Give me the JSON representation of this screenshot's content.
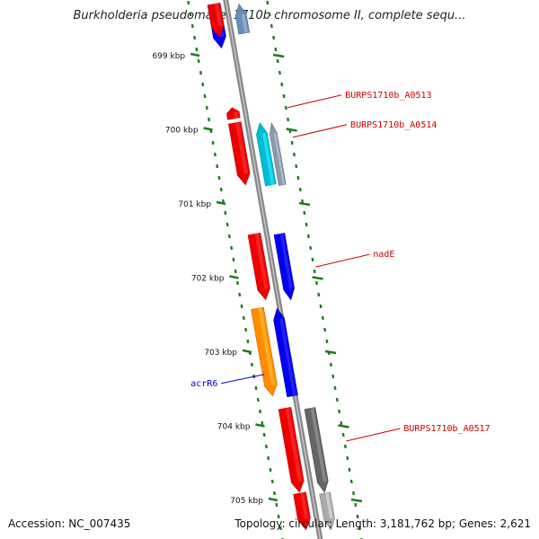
{
  "title": "Burkholderia pseudomallei 1710b chromosome II, complete sequ...",
  "footer": {
    "accession": "Accession: NC_007435",
    "summary": "Topology: circular; Length: 3,181,762 bp; Genes: 2,621"
  },
  "colors": {
    "backbone": "#8a8a8a",
    "tick": "#1f7a1f",
    "label_red": "#cc0000",
    "label_blue": "#0000cc"
  },
  "ticks": [
    {
      "kbp": 699,
      "label": "699 kbp"
    },
    {
      "kbp": 700,
      "label": "700 kbp"
    },
    {
      "kbp": 701,
      "label": "701 kbp"
    },
    {
      "kbp": 702,
      "label": "702 kbp"
    },
    {
      "kbp": 703,
      "label": "703 kbp"
    },
    {
      "kbp": 704,
      "label": "704 kbp"
    },
    {
      "kbp": 705,
      "label": "705 kbp"
    }
  ],
  "features": [
    {
      "track": "minus",
      "start_kbp": 698.3,
      "end_kbp": 698.9,
      "color": "#0000ee",
      "strand": "-"
    },
    {
      "track": "minus",
      "start_kbp": 698.3,
      "end_kbp": 698.75,
      "color": "#ee0000",
      "strand": "-"
    },
    {
      "track": "plus",
      "start_kbp": 698.3,
      "end_kbp": 698.7,
      "color": "#6a8fb0",
      "strand": "+"
    },
    {
      "track": "minus",
      "start_kbp": 699.7,
      "end_kbp": 699.85,
      "color": "#ee0000",
      "strand": "+"
    },
    {
      "track": "minus",
      "start_kbp": 699.9,
      "end_kbp": 700.75,
      "color": "#ee0000",
      "strand": "-"
    },
    {
      "track": "plus",
      "start_kbp": 699.9,
      "end_kbp": 700.75,
      "color": "#00bcd4",
      "strand": "+"
    },
    {
      "track": "plus2",
      "start_kbp": 699.9,
      "end_kbp": 700.75,
      "color": "#8a9aa8",
      "strand": "+"
    },
    {
      "track": "minus",
      "start_kbp": 701.4,
      "end_kbp": 702.3,
      "color": "#ee0000",
      "strand": "-"
    },
    {
      "track": "plus",
      "start_kbp": 701.4,
      "end_kbp": 702.3,
      "color": "#0000ee",
      "strand": "-"
    },
    {
      "track": "far_minus",
      "start_kbp": 702.4,
      "end_kbp": 703.6,
      "color": "#ff8c00",
      "strand": "-"
    },
    {
      "track": "plus_mid",
      "start_kbp": 702.4,
      "end_kbp": 703.6,
      "color": "#0000ee",
      "strand": "+"
    },
    {
      "track": "minus",
      "start_kbp": 703.75,
      "end_kbp": 704.9,
      "color": "#ee0000",
      "strand": "-"
    },
    {
      "track": "plus",
      "start_kbp": 703.75,
      "end_kbp": 704.9,
      "color": "#666666",
      "strand": "-"
    },
    {
      "track": "minus",
      "start_kbp": 704.9,
      "end_kbp": 705.4,
      "color": "#ee0000",
      "strand": "-"
    },
    {
      "track": "plus",
      "start_kbp": 704.9,
      "end_kbp": 705.4,
      "color": "#aaaaaa",
      "strand": "-"
    }
  ],
  "labels": [
    {
      "text": "BURPS1710b_A0513",
      "kbp": 699.7,
      "side": "right",
      "color": "#cc0000"
    },
    {
      "text": "BURPS1710b_A0514",
      "kbp": 700.1,
      "side": "right",
      "color": "#cc0000"
    },
    {
      "text": "nadE",
      "kbp": 701.85,
      "side": "right",
      "color": "#cc0000"
    },
    {
      "text": "acrR6",
      "kbp": 703.3,
      "side": "left",
      "color": "#0000cc"
    },
    {
      "text": "BURPS1710b_A0517",
      "kbp": 704.2,
      "side": "right",
      "color": "#cc0000"
    }
  ]
}
